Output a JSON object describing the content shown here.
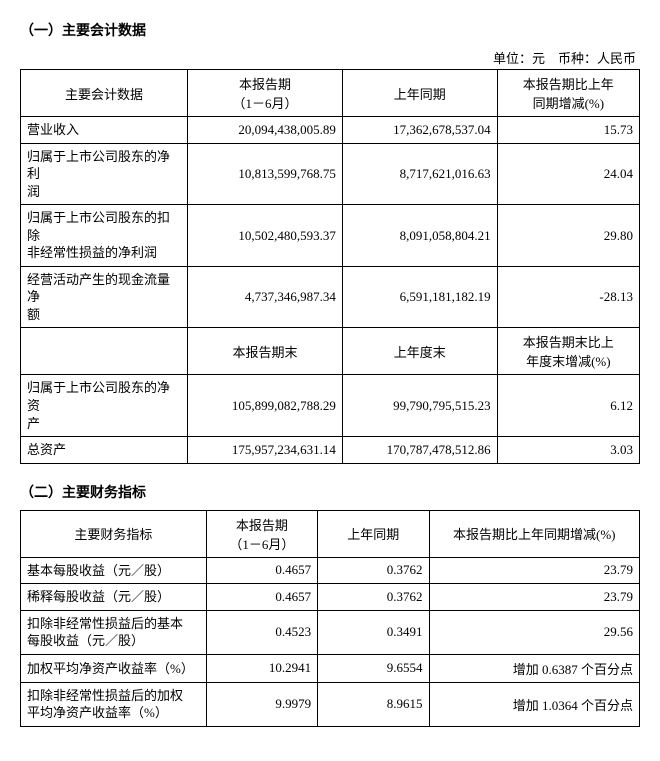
{
  "section1": {
    "title": "（一）主要会计数据",
    "unit_line": "单位：元　币种：人民币",
    "header": {
      "metric": "主要会计数据",
      "current": "本报告期\n（1－6月）",
      "previous": "上年同期",
      "change": "本报告期比上年\n同期增减(%)",
      "current_end": "本报告期末",
      "previous_end": "上年度末",
      "change_end": "本报告期末比上\n年度末增减(%)"
    },
    "rows_a": [
      {
        "label": "营业收入",
        "cur": "20,094,438,005.89",
        "prev": "17,362,678,537.04",
        "chg": "15.73"
      },
      {
        "label": "归属于上市公司股东的净利\n润",
        "cur": "10,813,599,768.75",
        "prev": "8,717,621,016.63",
        "chg": "24.04"
      },
      {
        "label": "归属于上市公司股东的扣除\n非经常性损益的净利润",
        "cur": "10,502,480,593.37",
        "prev": "8,091,058,804.21",
        "chg": "29.80"
      },
      {
        "label": "经营活动产生的现金流量净\n额",
        "cur": "4,737,346,987.34",
        "prev": "6,591,181,182.19",
        "chg": "-28.13"
      }
    ],
    "rows_b": [
      {
        "label": "归属于上市公司股东的净资\n产",
        "cur": "105,899,082,788.29",
        "prev": "99,790,795,515.23",
        "chg": "6.12"
      },
      {
        "label": "总资产",
        "cur": "175,957,234,631.14",
        "prev": "170,787,478,512.86",
        "chg": "3.03"
      }
    ]
  },
  "section2": {
    "title": "（二）主要财务指标",
    "header": {
      "metric": "主要财务指标",
      "current": "本报告期\n（1－6月）",
      "previous": "上年同期",
      "change": "本报告期比上年同期增减(%)"
    },
    "rows": [
      {
        "label": "基本每股收益（元／股）",
        "cur": "0.4657",
        "prev": "0.3762",
        "chg": "23.79"
      },
      {
        "label": "稀释每股收益（元／股）",
        "cur": "0.4657",
        "prev": "0.3762",
        "chg": "23.79"
      },
      {
        "label": "扣除非经常性损益后的基本\n每股收益（元／股）",
        "cur": "0.4523",
        "prev": "0.3491",
        "chg": "29.56"
      },
      {
        "label": "加权平均净资产收益率（%）",
        "cur": "10.2941",
        "prev": "9.6554",
        "chg": "增加 0.6387 个百分点"
      },
      {
        "label": "扣除非经常性损益后的加权\n平均净资产收益率（%）",
        "cur": "9.9979",
        "prev": "8.9615",
        "chg": "增加 1.0364 个百分点"
      }
    ]
  }
}
